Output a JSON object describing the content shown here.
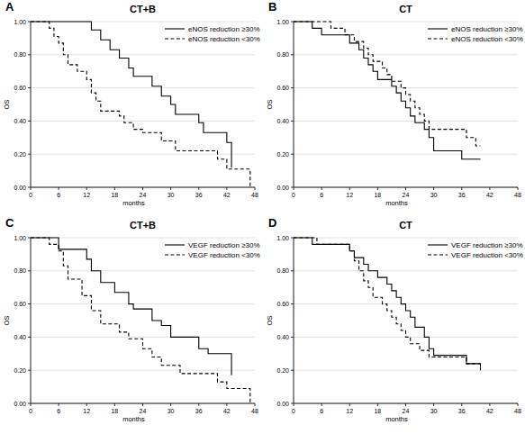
{
  "chart_data": [
    {
      "type": "step",
      "panel": "A",
      "title": "CT+B",
      "x_label": "months",
      "y_label": "OS",
      "xlim": [
        0,
        48
      ],
      "ylim": [
        0,
        1
      ],
      "xticks": [
        0,
        6,
        12,
        18,
        24,
        30,
        36,
        42,
        48
      ],
      "yticks": [
        {
          "value": 0,
          "label": "0.00"
        },
        {
          "value": 0.2,
          "label": "0.20"
        },
        {
          "value": 0.4,
          "label": "0.40"
        },
        {
          "value": 0.6,
          "label": "0.60"
        },
        {
          "value": 0.8,
          "label": "0.80"
        },
        {
          "value": 1,
          "label": "1.00"
        }
      ],
      "grid": true,
      "legend": "top-right",
      "series": [
        {
          "name": "eNOS reduction ≥30%",
          "color": "#000000",
          "line_style": "solid",
          "x": [
            0,
            13,
            15,
            17,
            19,
            21,
            22,
            26,
            28,
            30,
            31,
            36,
            37,
            42,
            43
          ],
          "values": [
            1.0,
            0.95,
            0.89,
            0.83,
            0.78,
            0.72,
            0.67,
            0.61,
            0.55,
            0.5,
            0.44,
            0.39,
            0.33,
            0.27,
            0.12
          ]
        },
        {
          "name": "eNOS reduction <30%",
          "color": "#000000",
          "line_style": "dashed",
          "x": [
            0,
            4,
            5,
            6,
            7,
            8,
            10,
            12,
            13,
            14,
            15,
            19,
            20,
            22,
            24,
            28,
            31,
            40,
            42,
            47
          ],
          "values": [
            1.0,
            0.96,
            0.91,
            0.87,
            0.8,
            0.74,
            0.7,
            0.65,
            0.57,
            0.52,
            0.46,
            0.43,
            0.39,
            0.35,
            0.33,
            0.28,
            0.22,
            0.17,
            0.11,
            0.0
          ]
        }
      ]
    },
    {
      "type": "step",
      "panel": "B",
      "title": "CT",
      "x_label": "months",
      "y_label": "OS",
      "xlim": [
        0,
        48
      ],
      "ylim": [
        0,
        1
      ],
      "xticks": [
        0,
        6,
        12,
        18,
        24,
        30,
        36,
        42,
        48
      ],
      "yticks": [
        {
          "value": 0,
          "label": "0.00"
        },
        {
          "value": 0.2,
          "label": "0.20"
        },
        {
          "value": 0.4,
          "label": "0.40"
        },
        {
          "value": 0.6,
          "label": "0.60"
        },
        {
          "value": 0.8,
          "label": "0.80"
        },
        {
          "value": 1,
          "label": "1.00"
        }
      ],
      "grid": true,
      "legend": "top-right",
      "series": [
        {
          "name": "eNOS reduction ≥30%",
          "color": "#000000",
          "line_style": "solid",
          "x": [
            0,
            4,
            6,
            12,
            14,
            15,
            16,
            17,
            18,
            21,
            22,
            23,
            24,
            25,
            26,
            28,
            29,
            30,
            36,
            40
          ],
          "values": [
            1.0,
            0.96,
            0.92,
            0.87,
            0.83,
            0.78,
            0.74,
            0.7,
            0.65,
            0.61,
            0.57,
            0.52,
            0.48,
            0.43,
            0.39,
            0.35,
            0.3,
            0.22,
            0.17,
            0.17
          ]
        },
        {
          "name": "eNOS reduction <30%",
          "color": "#000000",
          "line_style": "dashed",
          "x": [
            0,
            8,
            11,
            13,
            15,
            16,
            17,
            19,
            20,
            21,
            23,
            24,
            25,
            26,
            27,
            28,
            29,
            37,
            39,
            40
          ],
          "values": [
            1.0,
            0.96,
            0.92,
            0.88,
            0.84,
            0.8,
            0.76,
            0.72,
            0.68,
            0.64,
            0.6,
            0.56,
            0.52,
            0.48,
            0.44,
            0.4,
            0.35,
            0.3,
            0.25,
            0.25
          ]
        }
      ]
    },
    {
      "type": "step",
      "panel": "C",
      "title": "CT+B",
      "x_label": "months",
      "y_label": "OS",
      "xlim": [
        0,
        48
      ],
      "ylim": [
        0,
        1
      ],
      "xticks": [
        0,
        6,
        12,
        18,
        24,
        30,
        36,
        42,
        48
      ],
      "yticks": [
        {
          "value": 0,
          "label": "0.00"
        },
        {
          "value": 0.2,
          "label": "0.20"
        },
        {
          "value": 0.4,
          "label": "0.40"
        },
        {
          "value": 0.6,
          "label": "0.60"
        },
        {
          "value": 0.8,
          "label": "0.80"
        },
        {
          "value": 1,
          "label": "1.00"
        }
      ],
      "grid": true,
      "legend": "top-right",
      "series": [
        {
          "name": "VEGF reduction ≥30%",
          "color": "#000000",
          "line_style": "solid",
          "x": [
            0,
            6,
            12,
            13,
            15,
            18,
            21,
            22,
            26,
            28,
            30,
            36,
            38,
            43
          ],
          "values": [
            1.0,
            0.93,
            0.87,
            0.8,
            0.73,
            0.67,
            0.6,
            0.57,
            0.5,
            0.47,
            0.4,
            0.33,
            0.3,
            0.17
          ]
        },
        {
          "name": "VEGF reduction <30%",
          "color": "#000000",
          "line_style": "dashed",
          "x": [
            0,
            4,
            6,
            7,
            8,
            11,
            13,
            15,
            19,
            21,
            24,
            26,
            28,
            32,
            40,
            42,
            47
          ],
          "values": [
            1.0,
            0.96,
            0.92,
            0.83,
            0.75,
            0.65,
            0.56,
            0.48,
            0.43,
            0.39,
            0.33,
            0.28,
            0.23,
            0.18,
            0.13,
            0.09,
            0.0
          ]
        }
      ]
    },
    {
      "type": "step",
      "panel": "D",
      "title": "CT",
      "x_label": "months",
      "y_label": "OS",
      "xlim": [
        0,
        48
      ],
      "ylim": [
        0,
        1
      ],
      "xticks": [
        0,
        6,
        12,
        18,
        24,
        30,
        36,
        42,
        48
      ],
      "yticks": [
        {
          "value": 0,
          "label": "0.00"
        },
        {
          "value": 0.2,
          "label": "0.20"
        },
        {
          "value": 0.4,
          "label": "0.40"
        },
        {
          "value": 0.6,
          "label": "0.60"
        },
        {
          "value": 0.8,
          "label": "0.80"
        },
        {
          "value": 1,
          "label": "1.00"
        }
      ],
      "grid": true,
      "legend": "top-right",
      "series": [
        {
          "name": "VEGF reduction ≥30%",
          "color": "#000000",
          "line_style": "solid",
          "x": [
            0,
            4,
            12,
            13,
            15,
            16,
            18,
            20,
            21,
            22,
            23,
            24,
            25,
            26,
            28,
            29,
            30,
            37,
            40
          ],
          "values": [
            1.0,
            0.96,
            0.92,
            0.88,
            0.84,
            0.8,
            0.76,
            0.72,
            0.68,
            0.64,
            0.6,
            0.56,
            0.52,
            0.46,
            0.4,
            0.33,
            0.29,
            0.24,
            0.22
          ]
        },
        {
          "name": "VEGF reduction <30%",
          "color": "#000000",
          "line_style": "dashed",
          "x": [
            0,
            5,
            12,
            13,
            14,
            15,
            16,
            17,
            19,
            20,
            21,
            22,
            23,
            24,
            25,
            27,
            29,
            37,
            40
          ],
          "values": [
            1.0,
            0.96,
            0.92,
            0.86,
            0.8,
            0.74,
            0.7,
            0.64,
            0.6,
            0.56,
            0.52,
            0.48,
            0.44,
            0.4,
            0.36,
            0.32,
            0.28,
            0.24,
            0.2
          ]
        }
      ]
    }
  ]
}
